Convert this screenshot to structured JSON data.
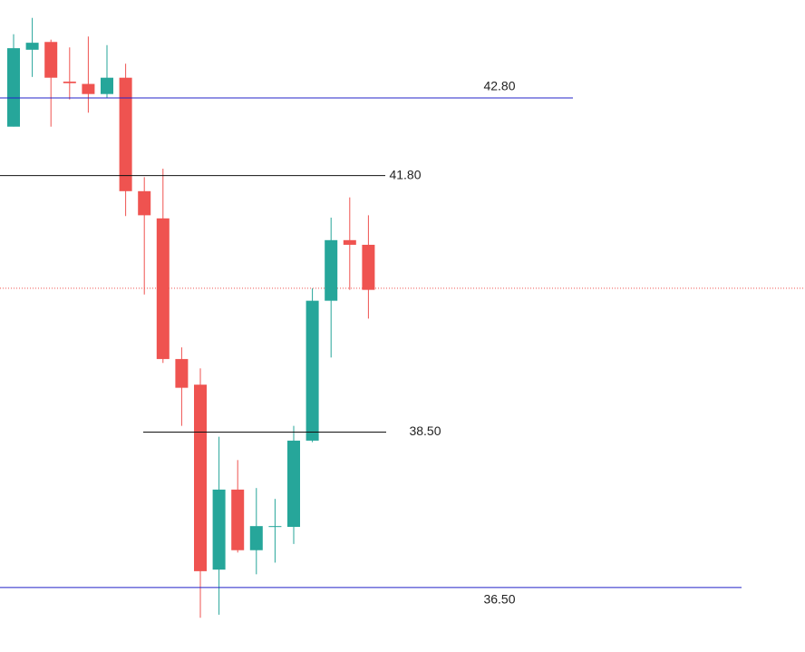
{
  "chart_data": {
    "type": "candlestick",
    "open": [
      42.43,
      43.42,
      43.52,
      43.01,
      42.98,
      42.85,
      43.06,
      41.6,
      41.25,
      39.44,
      39.11,
      36.73,
      37.76,
      36.98,
      37.28,
      37.28,
      38.39,
      40.19,
      40.97,
      40.91
    ],
    "high": [
      43.62,
      43.83,
      43.55,
      43.45,
      43.59,
      43.48,
      43.24,
      41.78,
      41.89,
      39.59,
      39.32,
      38.44,
      38.14,
      37.78,
      37.64,
      38.58,
      40.35,
      41.26,
      41.52,
      41.29
    ],
    "low": [
      42.43,
      43.07,
      42.43,
      42.78,
      42.61,
      42.8,
      41.28,
      40.27,
      39.39,
      38.58,
      36.11,
      36.15,
      36.95,
      36.67,
      36.82,
      37.06,
      38.37,
      39.46,
      40.33,
      39.96
    ],
    "close": [
      43.44,
      43.51,
      43.06,
      42.99,
      42.85,
      43.06,
      41.6,
      41.29,
      39.44,
      39.07,
      36.71,
      37.76,
      36.98,
      37.29,
      37.29,
      38.39,
      40.19,
      40.97,
      40.91,
      40.33
    ],
    "up_color": "#26a69a",
    "down_color": "#ef5350",
    "ylim": [
      35.67,
      44.06
    ],
    "levels": [
      {
        "value": 42.8,
        "label": "42.80",
        "color": "#2323c8"
      },
      {
        "value": 41.8,
        "label": "41.80",
        "color": "#111111"
      },
      {
        "value": 38.5,
        "label": "38.50",
        "color": "#111111"
      },
      {
        "value": 36.5,
        "label": "36.50",
        "color": "#2323c8"
      }
    ],
    "current_price": 40.35,
    "current_price_color": "#ef5350"
  }
}
